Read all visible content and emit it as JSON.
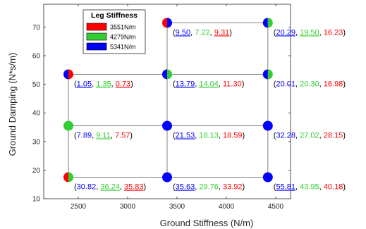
{
  "chart_data": {
    "type": "scatter",
    "xlabel": "Ground Stiffness (N/m)",
    "ylabel": "Ground Damping (N*s/m)",
    "xlim": [
      2150,
      4650
    ],
    "ylim": [
      10,
      78
    ],
    "xticks": [
      "2500",
      "3000",
      "3500",
      "4000",
      "4500"
    ],
    "yticks": [
      "10",
      "20",
      "30",
      "40",
      "50",
      "60",
      "70"
    ],
    "grid": false,
    "legend": {
      "title": "Leg Stiffness",
      "placement": "top-left",
      "entries": [
        {
          "label": "3551N/m",
          "color": "#ff0000"
        },
        {
          "label": "4279N/m",
          "color": "#33cc33"
        },
        {
          "label": "5341N/m",
          "color": "#0000ff"
        }
      ]
    },
    "colors": {
      "leg_3551": "#ff0000",
      "leg_4279": "#33cc33",
      "leg_5341": "#0000ff",
      "line": "#808080"
    },
    "points": [
      {
        "x": 2400,
        "y": 17.5,
        "colors": [
          "#ff0000",
          "#33cc33"
        ],
        "values": [
          {
            "text": "30.82",
            "color": "#0000ff",
            "underline": false
          },
          {
            "text": "36.24",
            "color": "#33cc33",
            "underline": true
          },
          {
            "text": "35.83",
            "color": "#ff0000",
            "underline": true
          }
        ]
      },
      {
        "x": 3400,
        "y": 17.5,
        "colors": [
          "#0000ff"
        ],
        "values": [
          {
            "text": "35.63",
            "color": "#0000ff",
            "underline": true
          },
          {
            "text": "29.76",
            "color": "#33cc33",
            "underline": false
          },
          {
            "text": "33.92",
            "color": "#ff0000",
            "underline": false
          }
        ]
      },
      {
        "x": 4420,
        "y": 17.5,
        "colors": [
          "#0000ff"
        ],
        "values": [
          {
            "text": "55.81",
            "color": "#0000ff",
            "underline": true
          },
          {
            "text": "43.95",
            "color": "#33cc33",
            "underline": false
          },
          {
            "text": "40.18",
            "color": "#ff0000",
            "underline": false
          }
        ]
      },
      {
        "x": 2400,
        "y": 35.5,
        "colors": [
          "#33cc33"
        ],
        "values": [
          {
            "text": "7.89",
            "color": "#0000ff",
            "underline": false
          },
          {
            "text": "9.11",
            "color": "#33cc33",
            "underline": true
          },
          {
            "text": "7.57",
            "color": "#ff0000",
            "underline": false
          }
        ]
      },
      {
        "x": 3400,
        "y": 35.5,
        "colors": [
          "#0000ff"
        ],
        "values": [
          {
            "text": "21.53",
            "color": "#0000ff",
            "underline": true
          },
          {
            "text": "18.13",
            "color": "#33cc33",
            "underline": false
          },
          {
            "text": "18.59",
            "color": "#ff0000",
            "underline": false
          }
        ]
      },
      {
        "x": 4420,
        "y": 35.5,
        "colors": [
          "#0000ff"
        ],
        "values": [
          {
            "text": "32.28",
            "color": "#0000ff",
            "underline": false
          },
          {
            "text": "27.02",
            "color": "#33cc33",
            "underline": false
          },
          {
            "text": "28.15",
            "color": "#ff0000",
            "underline": false
          }
        ]
      },
      {
        "x": 2400,
        "y": 53.5,
        "colors": [
          "#0000ff",
          "#ff0000"
        ],
        "values": [
          {
            "text": "1.05",
            "color": "#0000ff",
            "underline": true
          },
          {
            "text": "1.35",
            "color": "#33cc33",
            "underline": true
          },
          {
            "text": "0.73",
            "color": "#ff0000",
            "underline": true
          }
        ]
      },
      {
        "x": 3400,
        "y": 53.5,
        "colors": [
          "#0000ff",
          "#33cc33"
        ],
        "values": [
          {
            "text": "13.79",
            "color": "#0000ff",
            "underline": true
          },
          {
            "text": "14.04",
            "color": "#33cc33",
            "underline": true
          },
          {
            "text": "11.30",
            "color": "#ff0000",
            "underline": false
          }
        ]
      },
      {
        "x": 4420,
        "y": 53.5,
        "colors": [
          "#0000ff",
          "#33cc33"
        ],
        "values": [
          {
            "text": "20.01",
            "color": "#0000ff",
            "underline": false
          },
          {
            "text": "20.30",
            "color": "#33cc33",
            "underline": false
          },
          {
            "text": "16.98",
            "color": "#ff0000",
            "underline": false
          }
        ]
      },
      {
        "x": 3400,
        "y": 71.5,
        "colors": [
          "#ff0000",
          "#0000ff"
        ],
        "values": [
          {
            "text": "9.50",
            "color": "#0000ff",
            "underline": true
          },
          {
            "text": "7.22",
            "color": "#33cc33",
            "underline": false
          },
          {
            "text": "9.31",
            "color": "#ff0000",
            "underline": true
          }
        ]
      },
      {
        "x": 4420,
        "y": 71.5,
        "colors": [
          "#0000ff",
          "#33cc33"
        ],
        "values": [
          {
            "text": "20.29",
            "color": "#0000ff",
            "underline": true
          },
          {
            "text": "19.50",
            "color": "#33cc33",
            "underline": true
          },
          {
            "text": "16.23",
            "color": "#ff0000",
            "underline": false
          }
        ]
      }
    ],
    "segments": [
      [
        [
          2400,
          17.5
        ],
        [
          4420,
          17.5
        ]
      ],
      [
        [
          2400,
          35.5
        ],
        [
          4420,
          35.5
        ]
      ],
      [
        [
          2400,
          53.5
        ],
        [
          4420,
          53.5
        ]
      ],
      [
        [
          3400,
          71.5
        ],
        [
          4420,
          71.5
        ]
      ],
      [
        [
          2400,
          17.5
        ],
        [
          2400,
          53.5
        ]
      ],
      [
        [
          3400,
          17.5
        ],
        [
          3400,
          71.5
        ]
      ],
      [
        [
          4420,
          17.5
        ],
        [
          4420,
          71.5
        ]
      ]
    ]
  }
}
